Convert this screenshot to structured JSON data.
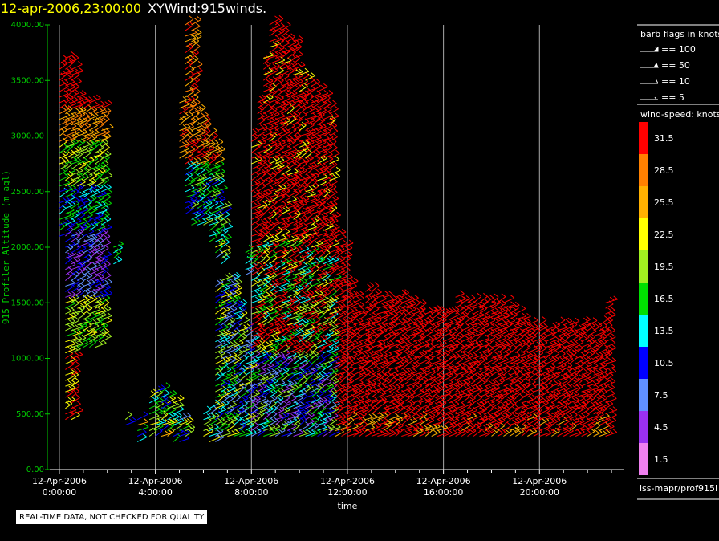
{
  "header": {
    "timestamp": "12-apr-2006,23:00:00",
    "name": "XYWind:915winds."
  },
  "notice": "REAL-TIME DATA, NOT CHECKED FOR QUALITY",
  "legend": {
    "barb_title": "barb flags in knots",
    "barbs": [
      "== 100",
      "== 50",
      "== 10",
      "== 5"
    ],
    "speed_title": "wind-speed: knots",
    "speed_entries": [
      {
        "label": "31.5",
        "color": "#ff0000"
      },
      {
        "label": "28.5",
        "color": "#ff8000"
      },
      {
        "label": "25.5",
        "color": "#ffb000"
      },
      {
        "label": "22.5",
        "color": "#ffff00"
      },
      {
        "label": "19.5",
        "color": "#a0f020"
      },
      {
        "label": "16.5",
        "color": "#00e000"
      },
      {
        "label": "13.5",
        "color": "#00ffff"
      },
      {
        "label": "10.5",
        "color": "#0000ff"
      },
      {
        "label": "7.5",
        "color": "#6090ff"
      },
      {
        "label": "4.5",
        "color": "#9a30f0"
      },
      {
        "label": "1.5",
        "color": "#f080f0"
      }
    ],
    "source": "iss-mapr/prof915l"
  },
  "chart_data": {
    "type": "scatter",
    "title": "12-apr-2006,23:00:00  XYWind:915winds.",
    "xlabel": "time",
    "ylabel": "915 Profiler Altitude (m agl)",
    "xlim_hours": [
      -0.5,
      23.5
    ],
    "ylim": [
      0,
      4000
    ],
    "yticks": [
      "0.00",
      "500.00",
      "1000.00",
      "1500.00",
      "2000.00",
      "2500.00",
      "3000.00",
      "3500.00",
      "4000.00"
    ],
    "xticks": [
      {
        "date": "12-Apr-2006",
        "time": "0:00:00",
        "hour": 0
      },
      {
        "date": "12-Apr-2006",
        "time": "4:00:00",
        "hour": 4
      },
      {
        "date": "12-Apr-2006",
        "time": "8:00:00",
        "hour": 8
      },
      {
        "date": "12-Apr-2006",
        "time": "12:00:00",
        "hour": 12
      },
      {
        "date": "12-Apr-2006",
        "time": "16:00:00",
        "hour": 16
      },
      {
        "date": "12-Apr-2006",
        "time": "20:00:00",
        "hour": 20
      }
    ],
    "grid_vertical": true,
    "columns": [
      {
        "t": 0.0,
        "lo": 2100,
        "hi": 3650
      },
      {
        "t": 0.25,
        "lo": 450,
        "hi": 3700
      },
      {
        "t": 0.5,
        "lo": 450,
        "hi": 3650
      },
      {
        "t": 0.75,
        "lo": 1100,
        "hi": 3350
      },
      {
        "t": 1.0,
        "lo": 1100,
        "hi": 3300
      },
      {
        "t": 1.25,
        "lo": 1100,
        "hi": 3300
      },
      {
        "t": 1.5,
        "lo": 1100,
        "hi": 3250
      },
      {
        "t": 1.75,
        "lo": 1150,
        "hi": 3250
      },
      {
        "t": 2.25,
        "lo": 1850,
        "hi": 2000
      },
      {
        "t": 2.75,
        "lo": 400,
        "hi": 450
      },
      {
        "t": 3.25,
        "lo": 250,
        "hi": 450
      },
      {
        "t": 3.75,
        "lo": 300,
        "hi": 650
      },
      {
        "t": 4.0,
        "lo": 300,
        "hi": 700
      },
      {
        "t": 4.25,
        "lo": 300,
        "hi": 700
      },
      {
        "t": 4.5,
        "lo": 300,
        "hi": 650
      },
      {
        "t": 4.75,
        "lo": 250,
        "hi": 600
      },
      {
        "t": 5.0,
        "lo": 250,
        "hi": 450
      },
      {
        "t": 5.25,
        "lo": 300,
        "hi": 400
      },
      {
        "t": 5.0,
        "lo": 2800,
        "hi": 3300
      },
      {
        "t": 5.25,
        "lo": 2300,
        "hi": 4000
      },
      {
        "t": 5.5,
        "lo": 2200,
        "hi": 4000
      },
      {
        "t": 5.75,
        "lo": 2200,
        "hi": 3200
      },
      {
        "t": 6.0,
        "lo": 2200,
        "hi": 3100
      },
      {
        "t": 6.25,
        "lo": 2050,
        "hi": 3000
      },
      {
        "t": 6.5,
        "lo": 1900,
        "hi": 2900
      },
      {
        "t": 6.75,
        "lo": 1850,
        "hi": 2350
      },
      {
        "t": 6.0,
        "lo": 300,
        "hi": 500
      },
      {
        "t": 6.25,
        "lo": 250,
        "hi": 550
      },
      {
        "t": 6.5,
        "lo": 250,
        "hi": 1650
      },
      {
        "t": 6.75,
        "lo": 300,
        "hi": 1700
      },
      {
        "t": 7.0,
        "lo": 300,
        "hi": 1700
      },
      {
        "t": 7.25,
        "lo": 300,
        "hi": 1700
      },
      {
        "t": 7.5,
        "lo": 300,
        "hi": 1450
      },
      {
        "t": 7.75,
        "lo": 300,
        "hi": 1250
      },
      {
        "t": 7.75,
        "lo": 1750,
        "hi": 1950
      },
      {
        "t": 8.0,
        "lo": 300,
        "hi": 3000
      },
      {
        "t": 8.25,
        "lo": 300,
        "hi": 3300
      },
      {
        "t": 8.5,
        "lo": 300,
        "hi": 3700
      },
      {
        "t": 8.75,
        "lo": 300,
        "hi": 4000
      },
      {
        "t": 9.0,
        "lo": 300,
        "hi": 4000
      },
      {
        "t": 9.25,
        "lo": 300,
        "hi": 3950
      },
      {
        "t": 9.5,
        "lo": 300,
        "hi": 3850
      },
      {
        "t": 9.75,
        "lo": 300,
        "hi": 3850
      },
      {
        "t": 10.0,
        "lo": 300,
        "hi": 3550
      },
      {
        "t": 10.25,
        "lo": 300,
        "hi": 3500
      },
      {
        "t": 10.5,
        "lo": 300,
        "hi": 3450
      },
      {
        "t": 10.75,
        "lo": 300,
        "hi": 3400
      },
      {
        "t": 11.0,
        "lo": 300,
        "hi": 3350
      },
      {
        "t": 11.25,
        "lo": 300,
        "hi": 3250
      },
      {
        "t": 11.5,
        "lo": 300,
        "hi": 2100
      },
      {
        "t": 11.75,
        "lo": 300,
        "hi": 2000
      },
      {
        "t": 12.0,
        "lo": 300,
        "hi": 1650
      },
      {
        "t": 12.25,
        "lo": 300,
        "hi": 1550
      },
      {
        "t": 12.5,
        "lo": 300,
        "hi": 1400
      },
      {
        "t": 12.75,
        "lo": 300,
        "hi": 1600
      },
      {
        "t": 13.0,
        "lo": 300,
        "hi": 1600
      },
      {
        "t": 13.25,
        "lo": 300,
        "hi": 1550
      },
      {
        "t": 13.5,
        "lo": 300,
        "hi": 1550
      },
      {
        "t": 13.75,
        "lo": 300,
        "hi": 1500
      },
      {
        "t": 14.0,
        "lo": 300,
        "hi": 1550
      },
      {
        "t": 14.25,
        "lo": 300,
        "hi": 1550
      },
      {
        "t": 14.5,
        "lo": 300,
        "hi": 1500
      },
      {
        "t": 14.75,
        "lo": 300,
        "hi": 1450
      },
      {
        "t": 15.0,
        "lo": 300,
        "hi": 1450
      },
      {
        "t": 15.25,
        "lo": 300,
        "hi": 1400
      },
      {
        "t": 15.5,
        "lo": 300,
        "hi": 1400
      },
      {
        "t": 15.75,
        "lo": 300,
        "hi": 1400
      },
      {
        "t": 16.0,
        "lo": 300,
        "hi": 1400
      },
      {
        "t": 16.25,
        "lo": 300,
        "hi": 1400
      },
      {
        "t": 16.5,
        "lo": 300,
        "hi": 1550
      },
      {
        "t": 16.75,
        "lo": 300,
        "hi": 1500
      },
      {
        "t": 17.0,
        "lo": 300,
        "hi": 1500
      },
      {
        "t": 17.25,
        "lo": 300,
        "hi": 1500
      },
      {
        "t": 17.5,
        "lo": 300,
        "hi": 1500
      },
      {
        "t": 17.75,
        "lo": 300,
        "hi": 1500
      },
      {
        "t": 18.0,
        "lo": 300,
        "hi": 1500
      },
      {
        "t": 18.25,
        "lo": 300,
        "hi": 1500
      },
      {
        "t": 18.5,
        "lo": 300,
        "hi": 1500
      },
      {
        "t": 18.75,
        "lo": 300,
        "hi": 1450
      },
      {
        "t": 19.0,
        "lo": 300,
        "hi": 1400
      },
      {
        "t": 19.25,
        "lo": 300,
        "hi": 1350
      },
      {
        "t": 19.5,
        "lo": 300,
        "hi": 1300
      },
      {
        "t": 19.75,
        "lo": 300,
        "hi": 1250
      },
      {
        "t": 20.0,
        "lo": 300,
        "hi": 1300
      },
      {
        "t": 20.25,
        "lo": 300,
        "hi": 1250
      },
      {
        "t": 20.5,
        "lo": 300,
        "hi": 1250
      },
      {
        "t": 20.75,
        "lo": 300,
        "hi": 1300
      },
      {
        "t": 21.0,
        "lo": 300,
        "hi": 1300
      },
      {
        "t": 21.25,
        "lo": 300,
        "hi": 1300
      },
      {
        "t": 21.5,
        "lo": 300,
        "hi": 1250
      },
      {
        "t": 21.75,
        "lo": 300,
        "hi": 1300
      },
      {
        "t": 22.0,
        "lo": 300,
        "hi": 1300
      },
      {
        "t": 22.25,
        "lo": 300,
        "hi": 1250
      },
      {
        "t": 22.5,
        "lo": 300,
        "hi": 1300
      },
      {
        "t": 22.75,
        "lo": 300,
        "hi": 1500
      }
    ]
  }
}
